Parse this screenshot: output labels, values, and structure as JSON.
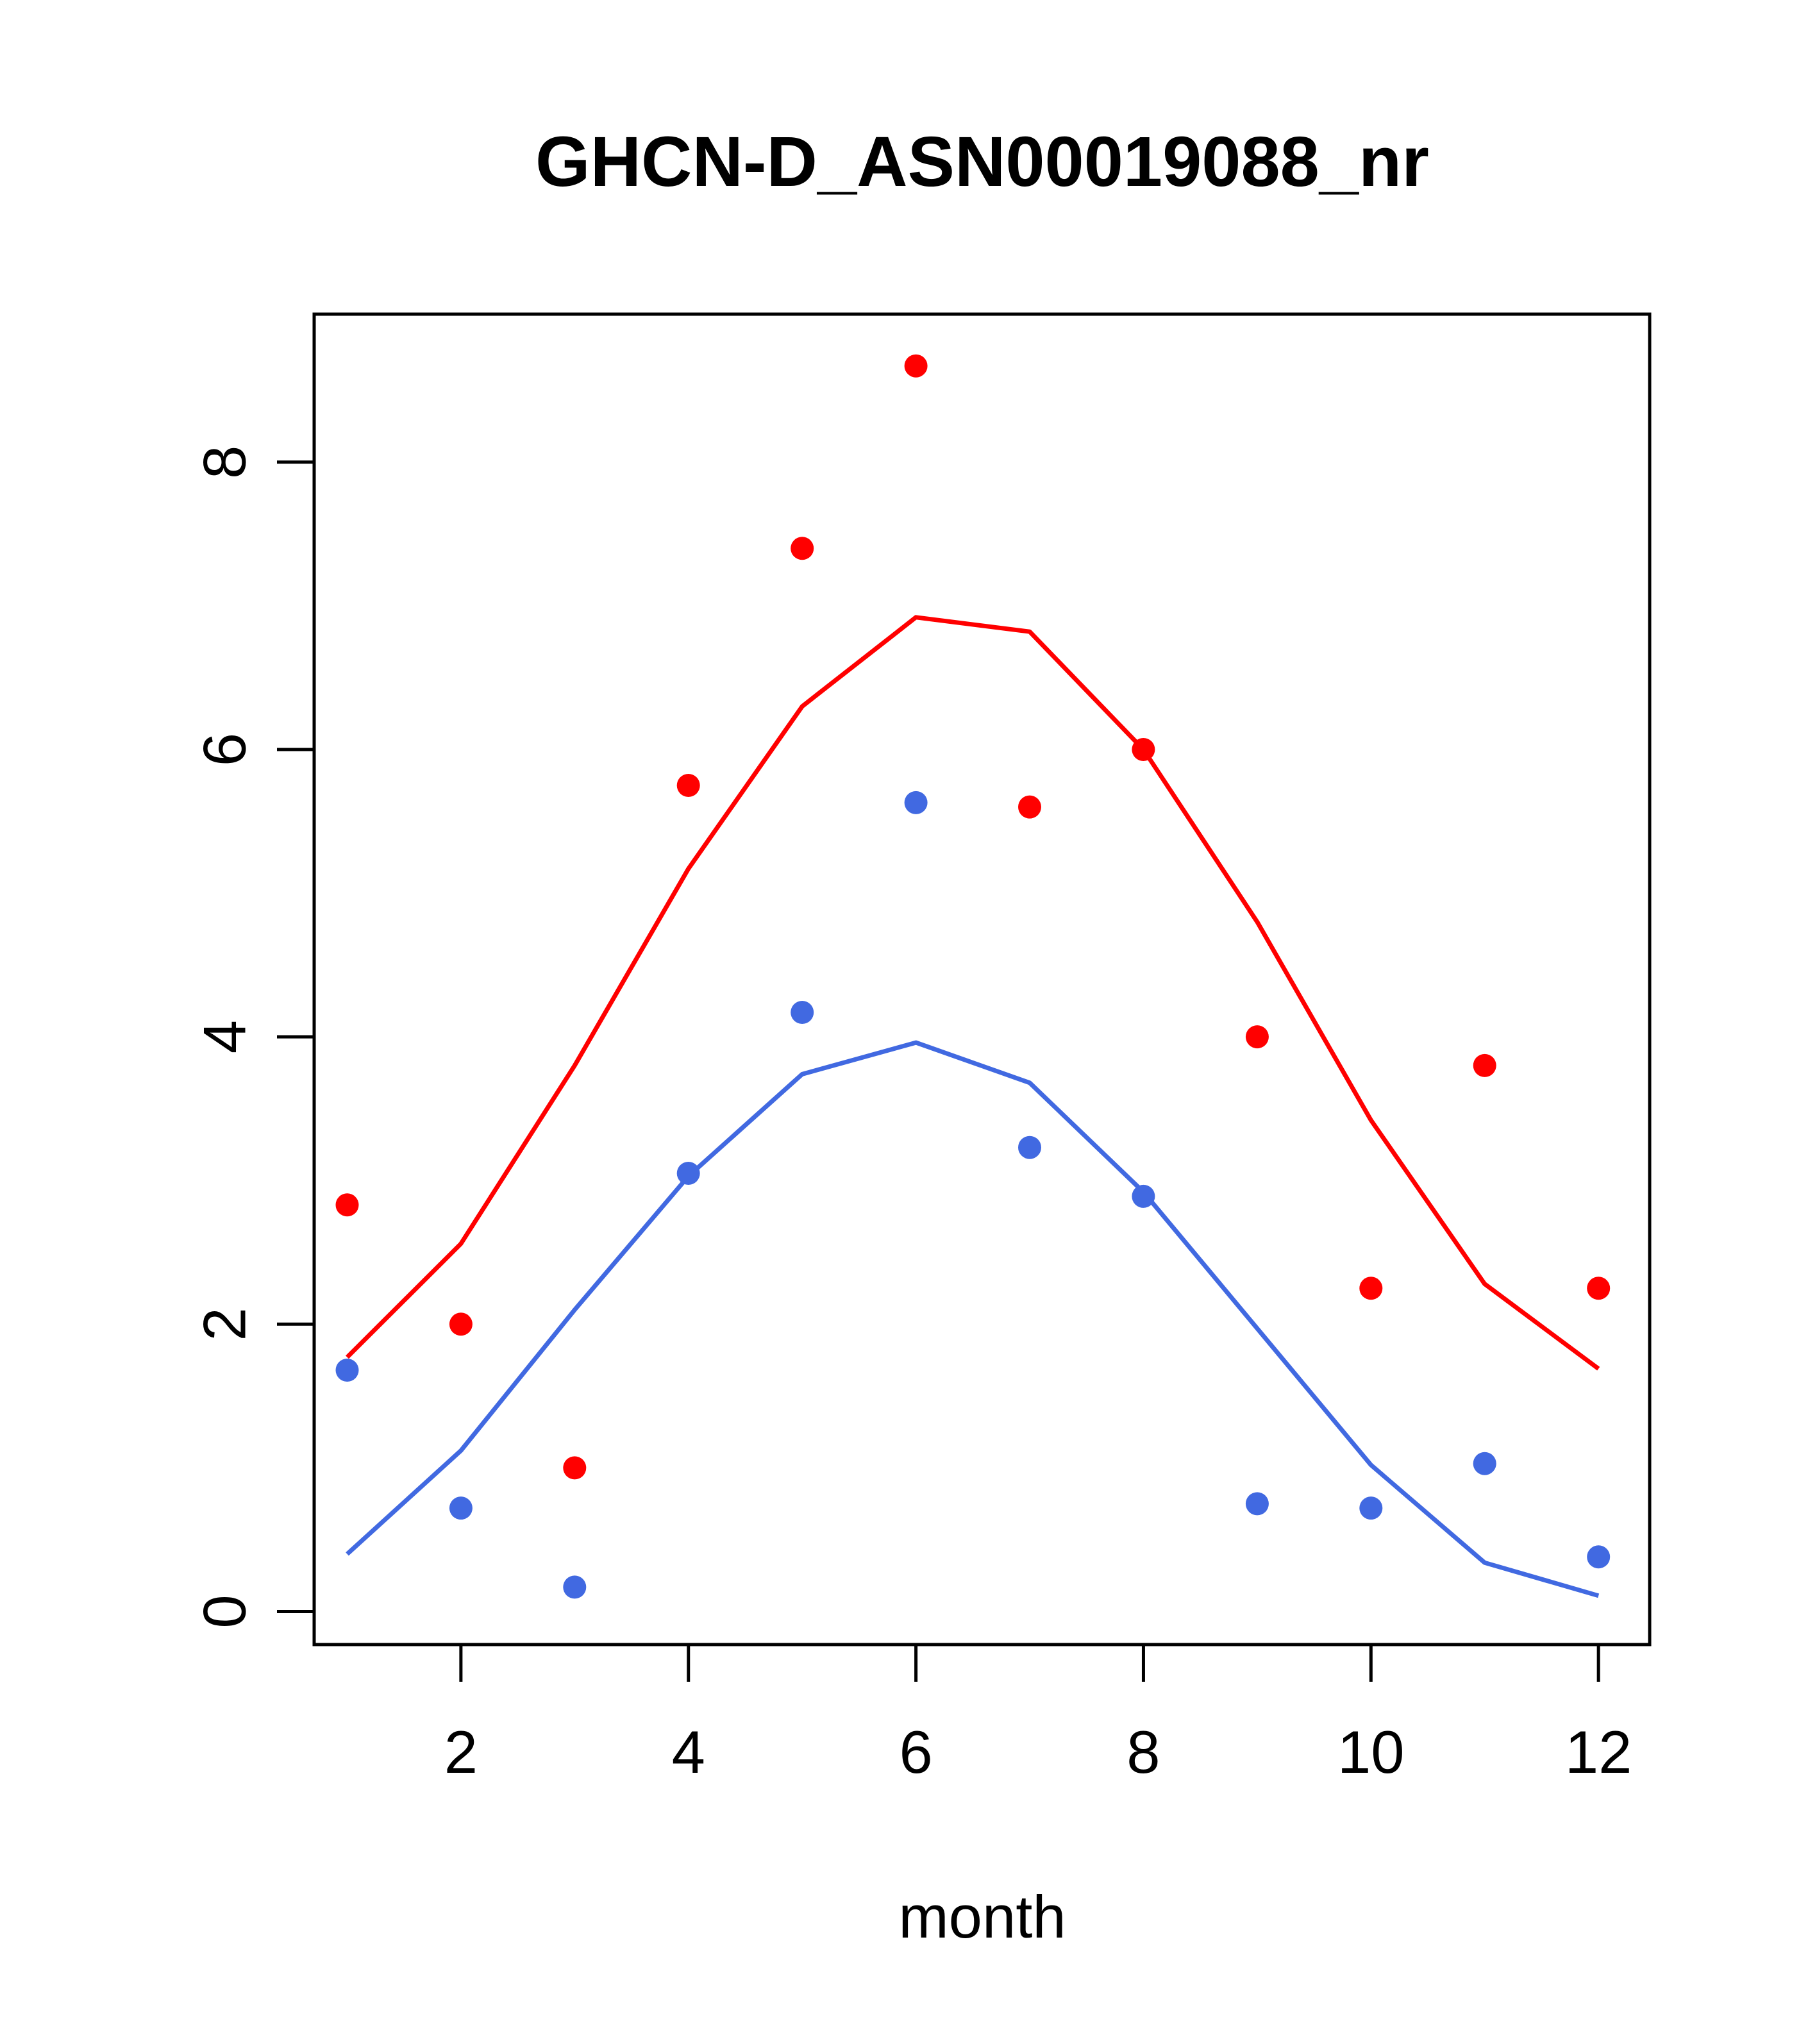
{
  "chart_data": {
    "type": "scatter",
    "title": "GHCN-D_ASN00019088_nr",
    "xlabel": "month",
    "ylabel": "",
    "xlim": [
      0.71,
      12.45
    ],
    "ylim": [
      -0.23,
      9.03
    ],
    "x_ticks": [
      2,
      4,
      6,
      8,
      10,
      12
    ],
    "y_ticks": [
      0,
      2,
      4,
      6,
      8
    ],
    "grid": false,
    "legend": "none",
    "colors": {
      "red": "#ff0000",
      "blue": "#4169e1"
    },
    "series": [
      {
        "color": "#ff0000",
        "points": {
          "x": [
            1,
            2,
            3,
            4,
            5,
            6,
            7,
            8,
            9,
            10,
            11,
            12
          ],
          "y": [
            2.83,
            2.0,
            1.0,
            5.75,
            7.4,
            8.67,
            5.6,
            6.0,
            4.0,
            2.25,
            3.8,
            2.25
          ]
        },
        "line": {
          "x": [
            1,
            2,
            3,
            4,
            5,
            6,
            7,
            8,
            9,
            10,
            11,
            12
          ],
          "y": [
            1.77,
            2.56,
            3.8,
            5.17,
            6.3,
            6.92,
            6.82,
            6.0,
            4.8,
            3.42,
            2.28,
            1.69
          ]
        }
      },
      {
        "color": "#4169e1",
        "points": {
          "x": [
            1,
            2,
            3,
            4,
            5,
            6,
            7,
            8,
            9,
            10,
            11,
            12
          ],
          "y": [
            1.68,
            0.72,
            0.17,
            3.05,
            4.17,
            5.63,
            3.23,
            2.89,
            0.75,
            0.72,
            1.03,
            0.38
          ]
        },
        "line": {
          "x": [
            1,
            2,
            3,
            4,
            5,
            6,
            7,
            8,
            9,
            10,
            11,
            12
          ],
          "y": [
            0.4,
            1.12,
            2.1,
            3.03,
            3.74,
            3.96,
            3.68,
            2.92,
            1.97,
            1.02,
            0.34,
            0.11
          ]
        }
      }
    ]
  }
}
